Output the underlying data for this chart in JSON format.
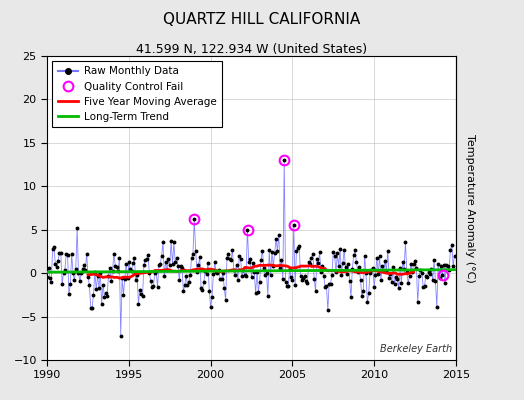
{
  "title": "QUARTZ HILL CALIFORNIA",
  "subtitle": "41.599 N, 122.934 W (United States)",
  "ylabel": "Temperature Anomaly (°C)",
  "watermark": "Berkeley Earth",
  "xlim": [
    1990,
    2015
  ],
  "ylim": [
    -10,
    25
  ],
  "yticks": [
    -10,
    -5,
    0,
    5,
    10,
    15,
    20,
    25
  ],
  "xticks": [
    1990,
    1995,
    2000,
    2005,
    2010,
    2015
  ],
  "bg_color": "#e8e8e8",
  "plot_bg_color": "#ffffff",
  "raw_line_color": "#7777ff",
  "raw_dot_color": "#000000",
  "moving_avg_color": "#ff0000",
  "trend_color": "#00bb00",
  "qc_fail_color": "#ff00ff",
  "legend_labels": [
    "Raw Monthly Data",
    "Quality Control Fail",
    "Five Year Moving Average",
    "Long-Term Trend"
  ],
  "seed": 12345,
  "n_months": 300,
  "start_year": 1990,
  "spike_year": 2004.5,
  "spike_val": 13.0,
  "qc_points": [
    [
      1999.0,
      6.2
    ],
    [
      2004.5,
      13.0
    ],
    [
      2002.3,
      5.0
    ],
    [
      2005.1,
      5.5
    ],
    [
      2014.2,
      -0.2
    ]
  ]
}
